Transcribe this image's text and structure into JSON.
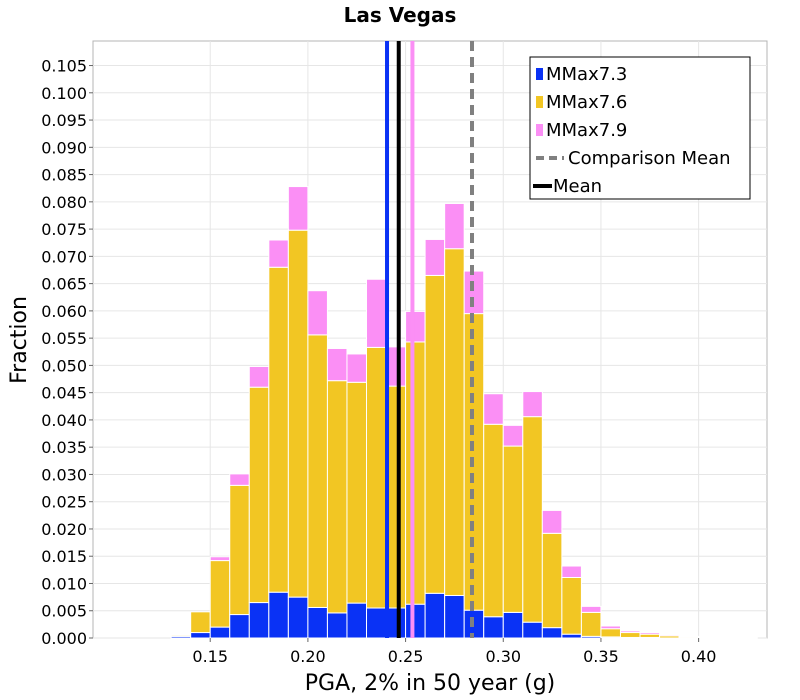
{
  "chart_data": {
    "type": "bar",
    "stacked": true,
    "title": "Las Vegas",
    "xlabel": "PGA, 2% in 50 year (g)",
    "ylabel": "Fraction",
    "xlim": [
      0.09,
      0.435
    ],
    "ylim": [
      0.0,
      0.1095
    ],
    "xticks": [
      "0.15",
      "0.20",
      "0.25",
      "0.30",
      "0.35",
      "0.40"
    ],
    "yticks": [
      "0.000",
      "0.005",
      "0.010",
      "0.015",
      "0.020",
      "0.025",
      "0.030",
      "0.035",
      "0.040",
      "0.045",
      "0.050",
      "0.055",
      "0.060",
      "0.065",
      "0.070",
      "0.075",
      "0.080",
      "0.085",
      "0.090",
      "0.095",
      "0.100",
      "0.105"
    ],
    "bin_width": 0.01,
    "bin_centers": [
      0.135,
      0.145,
      0.155,
      0.165,
      0.175,
      0.185,
      0.195,
      0.205,
      0.215,
      0.225,
      0.235,
      0.245,
      0.255,
      0.265,
      0.275,
      0.285,
      0.295,
      0.305,
      0.315,
      0.325,
      0.335,
      0.345,
      0.355,
      0.365,
      0.375,
      0.385,
      0.395,
      0.405,
      0.415,
      0.425
    ],
    "series": [
      {
        "name": "MMax7.3",
        "color": "#0a32f5",
        "values": [
          0.0003,
          0.001,
          0.002,
          0.0043,
          0.0065,
          0.0084,
          0.0075,
          0.0056,
          0.0046,
          0.0064,
          0.0055,
          0.0055,
          0.0062,
          0.0082,
          0.0078,
          0.0051,
          0.0039,
          0.0047,
          0.0029,
          0.0019,
          0.0007,
          0.0003,
          0.0002,
          0.0001,
          0.0001,
          0.0,
          0.0,
          0.0,
          0.0,
          0.0
        ]
      },
      {
        "name": "MMax7.6",
        "color": "#f2c623",
        "values": [
          0.0002,
          0.0038,
          0.0122,
          0.0237,
          0.0395,
          0.0596,
          0.0673,
          0.05,
          0.0426,
          0.0405,
          0.0478,
          0.0407,
          0.0481,
          0.0583,
          0.0636,
          0.0544,
          0.0353,
          0.0305,
          0.0377,
          0.0173,
          0.0104,
          0.0044,
          0.0015,
          0.0009,
          0.0006,
          0.0004,
          0.0002,
          0.0001,
          0.0001,
          0.0001
        ]
      },
      {
        "name": "MMax7.9",
        "color": "#fb8ff5",
        "values": [
          0.0,
          0.0,
          0.0007,
          0.0021,
          0.0038,
          0.005,
          0.008,
          0.0081,
          0.0059,
          0.0052,
          0.0125,
          0.0072,
          0.0056,
          0.0066,
          0.0083,
          0.0078,
          0.0056,
          0.0038,
          0.0046,
          0.0042,
          0.0021,
          0.0011,
          0.0005,
          0.0003,
          0.0003,
          0.0002,
          0.0001,
          0.0001,
          0.0,
          0.0
        ]
      }
    ],
    "reference_lines": [
      {
        "name": "MMax7.3 mean",
        "x": 0.2405,
        "color": "#0a32f5",
        "style": "solid"
      },
      {
        "name": "MMax7.9 mean",
        "x": 0.2535,
        "color": "#fb8ff5",
        "style": "solid"
      },
      {
        "name": "Mean",
        "x": 0.2465,
        "color": "#000000",
        "style": "solid"
      },
      {
        "name": "Comparison Mean",
        "x": 0.284,
        "color": "#808080",
        "style": "dashed"
      }
    ],
    "legend": {
      "position": "top-right",
      "entries": [
        {
          "label": "MMax7.3",
          "kind": "patch",
          "color": "#0a32f5"
        },
        {
          "label": "MMax7.6",
          "kind": "patch",
          "color": "#f2c623"
        },
        {
          "label": "MMax7.9",
          "kind": "patch",
          "color": "#fb8ff5"
        },
        {
          "label": "Comparison Mean",
          "kind": "dashed-line",
          "color": "#808080"
        },
        {
          "label": "Mean",
          "kind": "line",
          "color": "#000000"
        }
      ]
    },
    "grid": true
  }
}
